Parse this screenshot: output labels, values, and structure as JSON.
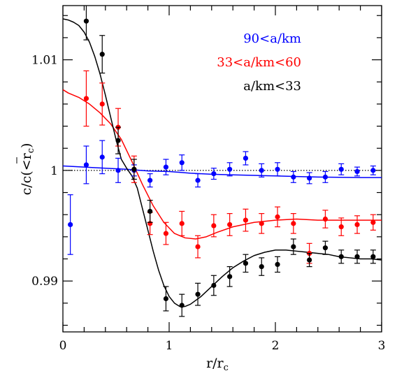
{
  "chart_data": {
    "type": "scatter",
    "xlabel": "r/r",
    "xlabel_sub": "c",
    "ylabel": "c/c(<r",
    "ylabel_sub": "c",
    "ylabel_close": ")",
    "xlim": [
      0,
      3
    ],
    "ylim": [
      0.9854,
      1.0149
    ],
    "xticks": [
      0,
      1,
      2,
      3
    ],
    "xtick_labels": [
      "0",
      "1",
      "2",
      "3"
    ],
    "yticks": [
      0.99,
      1.0,
      1.01
    ],
    "ytick_labels": [
      "0.99",
      "1",
      "1.01"
    ],
    "reference_line": {
      "y": 1.0,
      "style": "dotted"
    },
    "legend_placement": "top-right",
    "series": [
      {
        "name": "90<a/km",
        "color": "#0000ff",
        "points": [
          {
            "x": 0.07,
            "y": 0.9951,
            "err": 0.0027
          },
          {
            "x": 0.22,
            "y": 1.0005,
            "err": 0.0017
          },
          {
            "x": 0.37,
            "y": 1.0012,
            "err": 0.0015
          },
          {
            "x": 0.52,
            "y": 1.0,
            "err": 0.0011
          },
          {
            "x": 0.67,
            "y": 1.0,
            "err": 0.0005
          },
          {
            "x": 0.82,
            "y": 0.9991,
            "err": 0.0006
          },
          {
            "x": 0.97,
            "y": 1.0003,
            "err": 0.0007
          },
          {
            "x": 1.12,
            "y": 1.0007,
            "err": 0.0007
          },
          {
            "x": 1.27,
            "y": 0.9991,
            "err": 0.0006
          },
          {
            "x": 1.42,
            "y": 0.9997,
            "err": 0.0005
          },
          {
            "x": 1.57,
            "y": 1.0001,
            "err": 0.0006
          },
          {
            "x": 1.72,
            "y": 1.0011,
            "err": 0.0006
          },
          {
            "x": 1.87,
            "y": 1.0,
            "err": 0.0006
          },
          {
            "x": 2.02,
            "y": 1.0001,
            "err": 0.0006
          },
          {
            "x": 2.17,
            "y": 0.9994,
            "err": 0.0005
          },
          {
            "x": 2.32,
            "y": 0.9993,
            "err": 0.0005
          },
          {
            "x": 2.47,
            "y": 0.9994,
            "err": 0.0005
          },
          {
            "x": 2.62,
            "y": 1.0001,
            "err": 0.0005
          },
          {
            "x": 2.77,
            "y": 0.9999,
            "err": 0.0004
          },
          {
            "x": 2.92,
            "y": 1.0,
            "err": 0.0004
          }
        ],
        "curve": [
          [
            0.0,
            1.0004
          ],
          [
            0.2,
            1.0003
          ],
          [
            0.4,
            1.0002
          ],
          [
            0.6,
            1.0001
          ],
          [
            0.8,
            0.99995
          ],
          [
            1.0,
            0.9999
          ],
          [
            1.2,
            0.99975
          ],
          [
            1.4,
            0.99965
          ],
          [
            1.6,
            0.9996
          ],
          [
            1.8,
            0.99955
          ],
          [
            2.0,
            0.9995
          ],
          [
            2.2,
            0.99945
          ],
          [
            2.4,
            0.9994
          ],
          [
            2.6,
            0.99938
          ],
          [
            2.8,
            0.99935
          ],
          [
            3.0,
            0.99935
          ]
        ]
      },
      {
        "name": "33<a/km<60",
        "color": "#ff0000",
        "points": [
          {
            "x": 0.22,
            "y": 1.0065,
            "err": 0.0025
          },
          {
            "x": 0.37,
            "y": 1.006,
            "err": 0.0019
          },
          {
            "x": 0.52,
            "y": 1.0039,
            "err": 0.0017
          },
          {
            "x": 0.67,
            "y": 1.0001,
            "err": 0.0012
          },
          {
            "x": 0.82,
            "y": 0.9952,
            "err": 0.001
          },
          {
            "x": 0.97,
            "y": 0.9943,
            "err": 0.001
          },
          {
            "x": 1.12,
            "y": 0.9952,
            "err": 0.0011
          },
          {
            "x": 1.27,
            "y": 0.9931,
            "err": 0.001
          },
          {
            "x": 1.42,
            "y": 0.995,
            "err": 0.001
          },
          {
            "x": 1.57,
            "y": 0.9951,
            "err": 0.001
          },
          {
            "x": 1.72,
            "y": 0.9955,
            "err": 0.001
          },
          {
            "x": 1.87,
            "y": 0.9952,
            "err": 0.0009
          },
          {
            "x": 2.02,
            "y": 0.9958,
            "err": 0.0009
          },
          {
            "x": 2.17,
            "y": 0.9952,
            "err": 0.0009
          },
          {
            "x": 2.32,
            "y": 0.9925,
            "err": 0.0009
          },
          {
            "x": 2.47,
            "y": 0.9956,
            "err": 0.0008
          },
          {
            "x": 2.62,
            "y": 0.9949,
            "err": 0.0008
          },
          {
            "x": 2.77,
            "y": 0.9951,
            "err": 0.0008
          },
          {
            "x": 2.92,
            "y": 0.9953,
            "err": 0.0007
          }
        ],
        "curve": [
          [
            0.0,
            1.0073
          ],
          [
            0.05,
            1.007
          ],
          [
            0.15,
            1.0066
          ],
          [
            0.25,
            1.006
          ],
          [
            0.35,
            1.0052
          ],
          [
            0.45,
            1.0042
          ],
          [
            0.55,
            1.0028
          ],
          [
            0.65,
            1.0008
          ],
          [
            0.75,
            0.9987
          ],
          [
            0.85,
            0.9968
          ],
          [
            0.95,
            0.9953
          ],
          [
            1.05,
            0.9943
          ],
          [
            1.15,
            0.9939
          ],
          [
            1.25,
            0.9938
          ],
          [
            1.35,
            0.994
          ],
          [
            1.45,
            0.9944
          ],
          [
            1.6,
            0.9949
          ],
          [
            1.8,
            0.9953
          ],
          [
            2.0,
            0.9955
          ],
          [
            2.2,
            0.9956
          ],
          [
            2.4,
            0.9955
          ],
          [
            2.6,
            0.9955
          ],
          [
            2.8,
            0.9955
          ],
          [
            3.0,
            0.9955
          ]
        ]
      },
      {
        "name": "a/km<33",
        "color": "#000000",
        "points": [
          {
            "x": 0.22,
            "y": 1.0135,
            "err": 0.0017
          },
          {
            "x": 0.37,
            "y": 1.0105,
            "err": 0.0017
          },
          {
            "x": 0.52,
            "y": 1.0027,
            "err": 0.0012
          },
          {
            "x": 0.67,
            "y": 1.0001,
            "err": 0.0009
          },
          {
            "x": 0.82,
            "y": 0.9963,
            "err": 0.001
          },
          {
            "x": 0.97,
            "y": 0.9884,
            "err": 0.0011
          },
          {
            "x": 1.12,
            "y": 0.9878,
            "err": 0.001
          },
          {
            "x": 1.27,
            "y": 0.9888,
            "err": 0.001
          },
          {
            "x": 1.42,
            "y": 0.9896,
            "err": 0.0009
          },
          {
            "x": 1.57,
            "y": 0.9904,
            "err": 0.0009
          },
          {
            "x": 1.72,
            "y": 0.9916,
            "err": 0.0008
          },
          {
            "x": 1.87,
            "y": 0.9913,
            "err": 0.0008
          },
          {
            "x": 2.02,
            "y": 0.9915,
            "err": 0.0007
          },
          {
            "x": 2.17,
            "y": 0.9931,
            "err": 0.0007
          },
          {
            "x": 2.32,
            "y": 0.9919,
            "err": 0.0006
          },
          {
            "x": 2.47,
            "y": 0.993,
            "err": 0.0006
          },
          {
            "x": 2.62,
            "y": 0.9922,
            "err": 0.0006
          },
          {
            "x": 2.77,
            "y": 0.9922,
            "err": 0.0006
          },
          {
            "x": 2.92,
            "y": 0.9922,
            "err": 0.0006
          }
        ],
        "curve": [
          [
            0.0,
            1.0137
          ],
          [
            0.05,
            1.0136
          ],
          [
            0.1,
            1.0134
          ],
          [
            0.15,
            1.0131
          ],
          [
            0.2,
            1.0125
          ],
          [
            0.25,
            1.0116
          ],
          [
            0.3,
            1.0103
          ],
          [
            0.35,
            1.0087
          ],
          [
            0.4,
            1.0068
          ],
          [
            0.45,
            1.0048
          ],
          [
            0.5,
            1.0028
          ],
          [
            0.55,
            1.001
          ],
          [
            0.6,
            1.0002
          ],
          [
            0.65,
            0.9995
          ],
          [
            0.7,
            0.9984
          ],
          [
            0.75,
            0.9965
          ],
          [
            0.8,
            0.9946
          ],
          [
            0.85,
            0.9927
          ],
          [
            0.9,
            0.991
          ],
          [
            0.95,
            0.9896
          ],
          [
            1.0,
            0.9886
          ],
          [
            1.05,
            0.988
          ],
          [
            1.1,
            0.9877
          ],
          [
            1.15,
            0.9877
          ],
          [
            1.2,
            0.9879
          ],
          [
            1.3,
            0.9886
          ],
          [
            1.4,
            0.9895
          ],
          [
            1.5,
            0.9904
          ],
          [
            1.6,
            0.9912
          ],
          [
            1.7,
            0.9918
          ],
          [
            1.8,
            0.9923
          ],
          [
            1.9,
            0.9926
          ],
          [
            2.0,
            0.9928
          ],
          [
            2.1,
            0.9928
          ],
          [
            2.2,
            0.9927
          ],
          [
            2.3,
            0.9926
          ],
          [
            2.4,
            0.9925
          ],
          [
            2.5,
            0.9924
          ],
          [
            2.6,
            0.9922
          ],
          [
            2.7,
            0.9921
          ],
          [
            2.8,
            0.992
          ],
          [
            2.9,
            0.992
          ],
          [
            3.0,
            0.9919
          ]
        ]
      }
    ]
  }
}
